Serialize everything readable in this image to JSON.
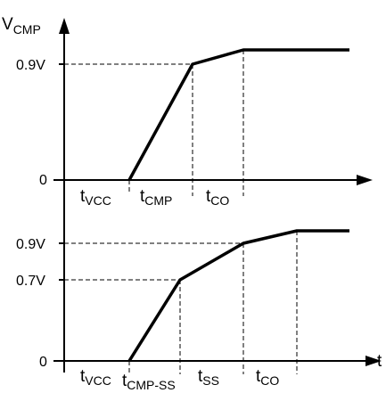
{
  "top_panel": {
    "y_axis_label": {
      "main": "V",
      "sub": "CMP"
    },
    "levels": [
      {
        "label": "0.9V",
        "value": 0.9
      }
    ],
    "zero_label": "0",
    "intervals": [
      {
        "main": "t",
        "sub": "VCC"
      },
      {
        "main": "t",
        "sub": "CMP"
      },
      {
        "main": "t",
        "sub": "CO"
      }
    ]
  },
  "bottom_panel": {
    "x_axis_label": "t",
    "levels": [
      {
        "label": "0.9V",
        "value": 0.9
      },
      {
        "label": "0.7V",
        "value": 0.7
      }
    ],
    "zero_label": "0",
    "intervals": [
      {
        "main": "t",
        "sub": "VCC"
      },
      {
        "main": "t",
        "sub": "CMP-SS"
      },
      {
        "main": "t",
        "sub": "SS"
      },
      {
        "main": "t",
        "sub": "CO"
      }
    ]
  },
  "colors": {
    "line": "#000000",
    "background": "#ffffff"
  }
}
